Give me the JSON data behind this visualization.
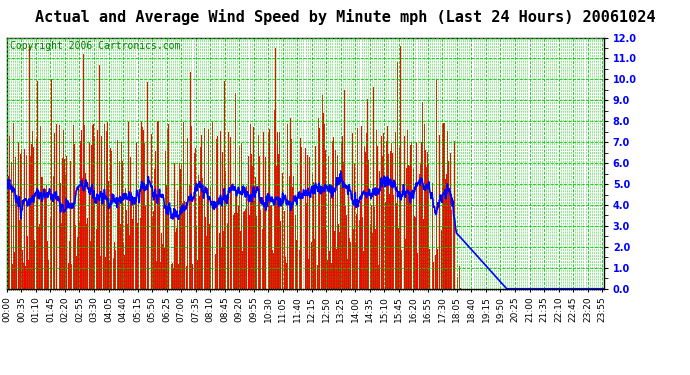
{
  "title": "Actual and Average Wind Speed by Minute mph (Last 24 Hours) 20061024",
  "copyright": "Copyright 2006 Cartronics.com",
  "ylim": [
    0.0,
    12.0
  ],
  "yticks": [
    0.0,
    1.0,
    2.0,
    3.0,
    4.0,
    5.0,
    6.0,
    7.0,
    8.0,
    9.0,
    10.0,
    11.0,
    12.0
  ],
  "bar_color": "#ff0000",
  "line_color": "#0000ff",
  "grid_color": "#00cc00",
  "bg_color": "#ffffff",
  "plot_bg_color": "#ffffff",
  "title_fontsize": 11,
  "copyright_fontsize": 7,
  "tick_labelsize": 6.5,
  "wind_cutoff_minute": 1085,
  "avg_base": 3.5,
  "tick_interval": 35
}
